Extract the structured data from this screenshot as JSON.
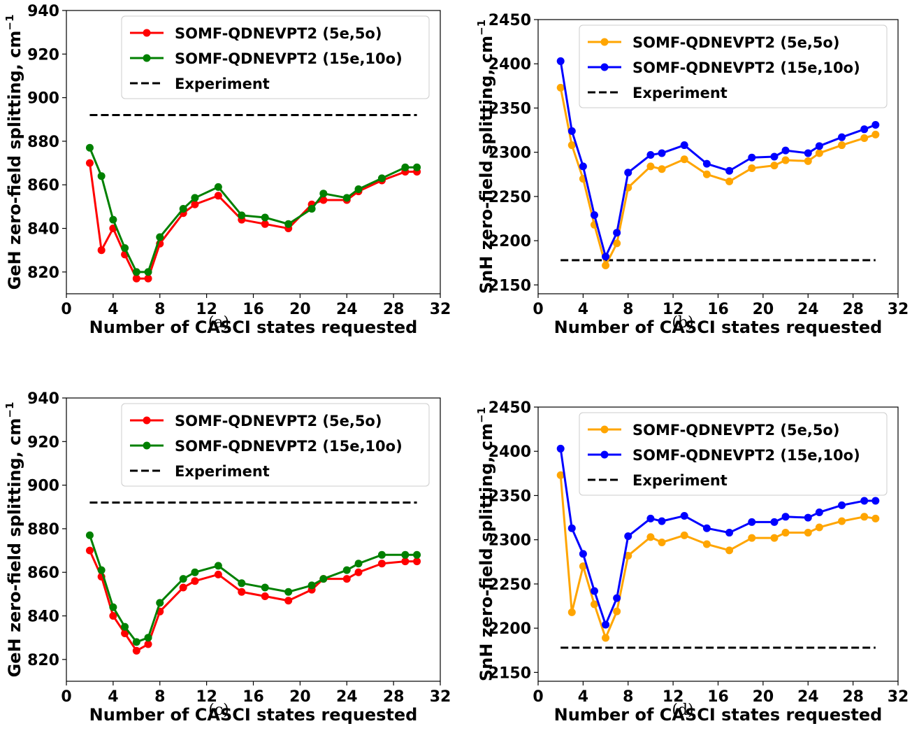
{
  "chart_data": [
    {
      "type": "line",
      "caption": "(a)",
      "xlabel": "Number of CASCI states requested",
      "ylabel": "GeH zero-field splitting, cm",
      "ylabel_sup": "−1",
      "xlim": [
        0,
        32
      ],
      "ylim": [
        810,
        940
      ],
      "xticks": [
        0,
        4,
        8,
        12,
        16,
        20,
        24,
        28,
        32
      ],
      "yticks": [
        820,
        840,
        860,
        880,
        900,
        920,
        940
      ],
      "legend_position": "top-right",
      "grid": false,
      "series": [
        {
          "name": "SOMF-QDNEVPT2 (5e,5o)",
          "color": "#ff0000",
          "x": [
            2,
            3,
            4,
            5,
            6,
            7,
            8,
            10,
            11,
            13,
            15,
            17,
            19,
            21,
            22,
            24,
            25,
            27,
            29,
            30
          ],
          "values": [
            870,
            830,
            840,
            828,
            817,
            817,
            833,
            847,
            851,
            855,
            844,
            842,
            840,
            851,
            853,
            853,
            857,
            862,
            866,
            866
          ]
        },
        {
          "name": "SOMF-QDNEVPT2 (15e,10o)",
          "color": "#008000",
          "x": [
            2,
            3,
            4,
            5,
            6,
            7,
            8,
            10,
            11,
            13,
            15,
            17,
            19,
            21,
            22,
            24,
            25,
            27,
            29,
            30
          ],
          "values": [
            877,
            864,
            844,
            831,
            820,
            820,
            836,
            849,
            854,
            859,
            846,
            845,
            842,
            849,
            856,
            854,
            858,
            863,
            868,
            868
          ]
        }
      ],
      "reference": {
        "name": "Experiment",
        "color": "#000000",
        "x": [
          2,
          30
        ],
        "value": 892
      }
    },
    {
      "type": "line",
      "caption": "(b)",
      "xlabel": "Number of CASCI states requested",
      "ylabel": "SnH zero-field splitting, cm",
      "ylabel_sup": "−1",
      "xlim": [
        0,
        32
      ],
      "ylim": [
        2140,
        2450
      ],
      "xticks": [
        0,
        4,
        8,
        12,
        16,
        20,
        24,
        28,
        32
      ],
      "yticks": [
        2150,
        2200,
        2250,
        2300,
        2350,
        2400,
        2450
      ],
      "legend_position": "top-right",
      "grid": false,
      "series": [
        {
          "name": "SOMF-QDNEVPT2 (5e,5o)",
          "color": "#ffa500",
          "x": [
            2,
            3,
            4,
            5,
            6,
            7,
            8,
            10,
            11,
            13,
            15,
            17,
            19,
            21,
            22,
            24,
            25,
            27,
            29,
            30
          ],
          "values": [
            2373,
            2308,
            2270,
            2218,
            2172,
            2197,
            2260,
            2284,
            2281,
            2292,
            2275,
            2267,
            2282,
            2285,
            2291,
            2290,
            2299,
            2308,
            2316,
            2320
          ]
        },
        {
          "name": "SOMF-QDNEVPT2 (15e,10o)",
          "color": "#0000ff",
          "x": [
            2,
            3,
            4,
            5,
            6,
            7,
            8,
            10,
            11,
            13,
            15,
            17,
            19,
            21,
            22,
            24,
            25,
            27,
            29,
            30
          ],
          "values": [
            2403,
            2324,
            2284,
            2229,
            2182,
            2209,
            2277,
            2297,
            2299,
            2308,
            2287,
            2279,
            2294,
            2295,
            2302,
            2299,
            2307,
            2317,
            2326,
            2331
          ]
        }
      ],
      "reference": {
        "name": "Experiment",
        "color": "#000000",
        "x": [
          2,
          30
        ],
        "value": 2178
      }
    },
    {
      "type": "line",
      "caption": "(c)",
      "xlabel": "Number of CASCI states requested",
      "ylabel": "GeH zero-field splitting, cm",
      "ylabel_sup": "−1",
      "xlim": [
        0,
        32
      ],
      "ylim": [
        810,
        940
      ],
      "xticks": [
        0,
        4,
        8,
        12,
        16,
        20,
        24,
        28,
        32
      ],
      "yticks": [
        820,
        840,
        860,
        880,
        900,
        920,
        940
      ],
      "legend_position": "top-right",
      "grid": false,
      "series": [
        {
          "name": "SOMF-QDNEVPT2 (5e,5o)",
          "color": "#ff0000",
          "x": [
            2,
            3,
            4,
            5,
            6,
            7,
            8,
            10,
            11,
            13,
            15,
            17,
            19,
            21,
            22,
            24,
            25,
            27,
            29,
            30
          ],
          "values": [
            870,
            858,
            840,
            832,
            824,
            827,
            842,
            853,
            856,
            859,
            851,
            849,
            847,
            852,
            857,
            857,
            860,
            864,
            865,
            865
          ]
        },
        {
          "name": "SOMF-QDNEVPT2 (15e,10o)",
          "color": "#008000",
          "x": [
            2,
            3,
            4,
            5,
            6,
            7,
            8,
            10,
            11,
            13,
            15,
            17,
            19,
            21,
            22,
            24,
            25,
            27,
            29,
            30
          ],
          "values": [
            877,
            861,
            844,
            835,
            828,
            830,
            846,
            857,
            860,
            863,
            855,
            853,
            851,
            854,
            857,
            861,
            864,
            868,
            868,
            868
          ]
        }
      ],
      "reference": {
        "name": "Experiment",
        "color": "#000000",
        "x": [
          2,
          30
        ],
        "value": 892
      }
    },
    {
      "type": "line",
      "caption": "(d)",
      "xlabel": "Number of CASCI states requested",
      "ylabel": "SnH zero-field splitting, cm",
      "ylabel_sup": "−1",
      "xlim": [
        0,
        32
      ],
      "ylim": [
        2140,
        2450
      ],
      "xticks": [
        0,
        4,
        8,
        12,
        16,
        20,
        24,
        28,
        32
      ],
      "yticks": [
        2150,
        2200,
        2250,
        2300,
        2350,
        2400,
        2450
      ],
      "legend_position": "top-right",
      "grid": false,
      "series": [
        {
          "name": "SOMF-QDNEVPT2 (5e,5o)",
          "color": "#ffa500",
          "x": [
            2,
            3,
            4,
            5,
            6,
            7,
            8,
            10,
            11,
            13,
            15,
            17,
            19,
            21,
            22,
            24,
            25,
            27,
            29,
            30
          ],
          "values": [
            2373,
            2218,
            2270,
            2227,
            2189,
            2219,
            2282,
            2303,
            2297,
            2305,
            2295,
            2288,
            2302,
            2302,
            2308,
            2308,
            2314,
            2321,
            2326,
            2324
          ]
        },
        {
          "name": "SOMF-QDNEVPT2 (15e,10o)",
          "color": "#0000ff",
          "x": [
            2,
            3,
            4,
            5,
            6,
            7,
            8,
            10,
            11,
            13,
            15,
            17,
            19,
            21,
            22,
            24,
            25,
            27,
            29,
            30
          ],
          "values": [
            2403,
            2313,
            2284,
            2242,
            2204,
            2234,
            2304,
            2324,
            2321,
            2327,
            2313,
            2308,
            2320,
            2320,
            2326,
            2325,
            2331,
            2339,
            2344,
            2344
          ]
        }
      ],
      "reference": {
        "name": "Experiment",
        "color": "#000000",
        "x": [
          2,
          30
        ],
        "value": 2178
      }
    }
  ]
}
